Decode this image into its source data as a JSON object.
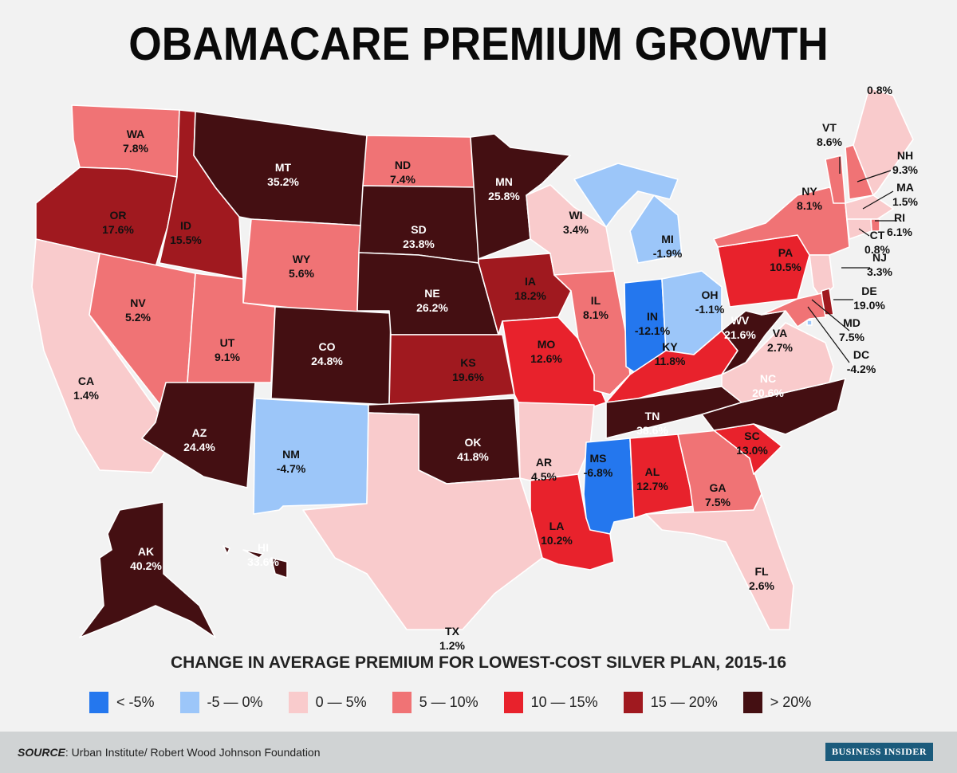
{
  "title": "OBAMACARE PREMIUM GROWTH",
  "subtitle": "CHANGE IN AVERAGE PREMIUM FOR LOWEST-COST SILVER PLAN, 2015-16",
  "footer": {
    "source_label": "SOURCE",
    "source_text": ": Urban Institute/ Robert Wood Johnson Foundation",
    "logo": "BUSINESS INSIDER"
  },
  "legend": [
    {
      "label": "< -5%",
      "color": "#2477ee"
    },
    {
      "label": "-5 — 0%",
      "color": "#9cc6f9"
    },
    {
      "label": "0 — 5%",
      "color": "#f9cbcc"
    },
    {
      "label": "5 — 10%",
      "color": "#f07375"
    },
    {
      "label": "10 — 15%",
      "color": "#e8222c"
    },
    {
      "label": "15 — 20%",
      "color": "#a0191f"
    },
    {
      "label": "> 20%",
      "color": "#440f12"
    }
  ],
  "chart_data": {
    "type": "choropleth",
    "title": "OBAMACARE PREMIUM GROWTH",
    "subtitle": "CHANGE IN AVERAGE PREMIUM FOR LOWEST-COST SILVER PLAN, 2015-16",
    "unit": "%",
    "bins": [
      {
        "label": "< -5%",
        "min": null,
        "max": -5
      },
      {
        "label": "-5 — 0%",
        "min": -5,
        "max": 0
      },
      {
        "label": "0 — 5%",
        "min": 0,
        "max": 5
      },
      {
        "label": "5 — 10%",
        "min": 5,
        "max": 10
      },
      {
        "label": "10 — 15%",
        "min": 10,
        "max": 15
      },
      {
        "label": "15 — 20%",
        "min": 15,
        "max": 20
      },
      {
        "label": "> 20%",
        "min": 20,
        "max": null
      }
    ],
    "states": [
      {
        "abbr": "WA",
        "value": 7.8,
        "text": "7.8%"
      },
      {
        "abbr": "OR",
        "value": 17.6,
        "text": "17.6%"
      },
      {
        "abbr": "CA",
        "value": 1.4,
        "text": "1.4%"
      },
      {
        "abbr": "ID",
        "value": 15.5,
        "text": "15.5%"
      },
      {
        "abbr": "NV",
        "value": 5.2,
        "text": "5.2%"
      },
      {
        "abbr": "MT",
        "value": 35.2,
        "text": "35.2%"
      },
      {
        "abbr": "WY",
        "value": 5.6,
        "text": "5.6%"
      },
      {
        "abbr": "UT",
        "value": 9.1,
        "text": "9.1%"
      },
      {
        "abbr": "AZ",
        "value": 24.4,
        "text": "24.4%"
      },
      {
        "abbr": "CO",
        "value": 24.8,
        "text": "24.8%"
      },
      {
        "abbr": "NM",
        "value": -4.7,
        "text": "-4.7%"
      },
      {
        "abbr": "ND",
        "value": 7.4,
        "text": "7.4%"
      },
      {
        "abbr": "SD",
        "value": 23.8,
        "text": "23.8%"
      },
      {
        "abbr": "NE",
        "value": 26.2,
        "text": "26.2%"
      },
      {
        "abbr": "KS",
        "value": 19.6,
        "text": "19.6%"
      },
      {
        "abbr": "OK",
        "value": 41.8,
        "text": "41.8%"
      },
      {
        "abbr": "TX",
        "value": 1.2,
        "text": "1.2%"
      },
      {
        "abbr": "MN",
        "value": 25.8,
        "text": "25.8%"
      },
      {
        "abbr": "IA",
        "value": 18.2,
        "text": "18.2%"
      },
      {
        "abbr": "MO",
        "value": 12.6,
        "text": "12.6%"
      },
      {
        "abbr": "AR",
        "value": 4.5,
        "text": "4.5%"
      },
      {
        "abbr": "LA",
        "value": 10.2,
        "text": "10.2%"
      },
      {
        "abbr": "WI",
        "value": 3.4,
        "text": "3.4%"
      },
      {
        "abbr": "IL",
        "value": 8.1,
        "text": "8.1%"
      },
      {
        "abbr": "MI",
        "value": -1.9,
        "text": "-1.9%"
      },
      {
        "abbr": "IN",
        "value": -12.1,
        "text": "-12.1%"
      },
      {
        "abbr": "OH",
        "value": -1.1,
        "text": "-1.1%"
      },
      {
        "abbr": "KY",
        "value": 11.8,
        "text": "11.8%"
      },
      {
        "abbr": "TN",
        "value": 38.6,
        "text": "38.6%"
      },
      {
        "abbr": "MS",
        "value": -6.8,
        "text": "-6.8%"
      },
      {
        "abbr": "AL",
        "value": 12.7,
        "text": "12.7%"
      },
      {
        "abbr": "GA",
        "value": 7.5,
        "text": "7.5%"
      },
      {
        "abbr": "FL",
        "value": 2.6,
        "text": "2.6%"
      },
      {
        "abbr": "SC",
        "value": 13.0,
        "text": "13.0%"
      },
      {
        "abbr": "NC",
        "value": 20.6,
        "text": "20.6%"
      },
      {
        "abbr": "VA",
        "value": 2.7,
        "text": "2.7%"
      },
      {
        "abbr": "WV",
        "value": 21.6,
        "text": "21.6%"
      },
      {
        "abbr": "PA",
        "value": 10.5,
        "text": "10.5%"
      },
      {
        "abbr": "NY",
        "value": 8.1,
        "text": "8.1%"
      },
      {
        "abbr": "VT",
        "value": 8.6,
        "text": "8.6%"
      },
      {
        "abbr": "NH",
        "value": 9.3,
        "text": "9.3%"
      },
      {
        "abbr": "ME",
        "value": 0.8,
        "text": "0.8%"
      },
      {
        "abbr": "MA",
        "value": 1.5,
        "text": "1.5%"
      },
      {
        "abbr": "RI",
        "value": 6.1,
        "text": "6.1%"
      },
      {
        "abbr": "CT",
        "value": 0.8,
        "text": "0.8%"
      },
      {
        "abbr": "NJ",
        "value": 3.3,
        "text": "3.3%"
      },
      {
        "abbr": "DE",
        "value": 19.0,
        "text": "19.0%"
      },
      {
        "abbr": "MD",
        "value": 7.5,
        "text": "7.5%"
      },
      {
        "abbr": "DC",
        "value": -4.2,
        "text": "-4.2%"
      },
      {
        "abbr": "AK",
        "value": 40.2,
        "text": "40.2%"
      },
      {
        "abbr": "HI",
        "value": 33.6,
        "text": "33.6%"
      }
    ]
  }
}
